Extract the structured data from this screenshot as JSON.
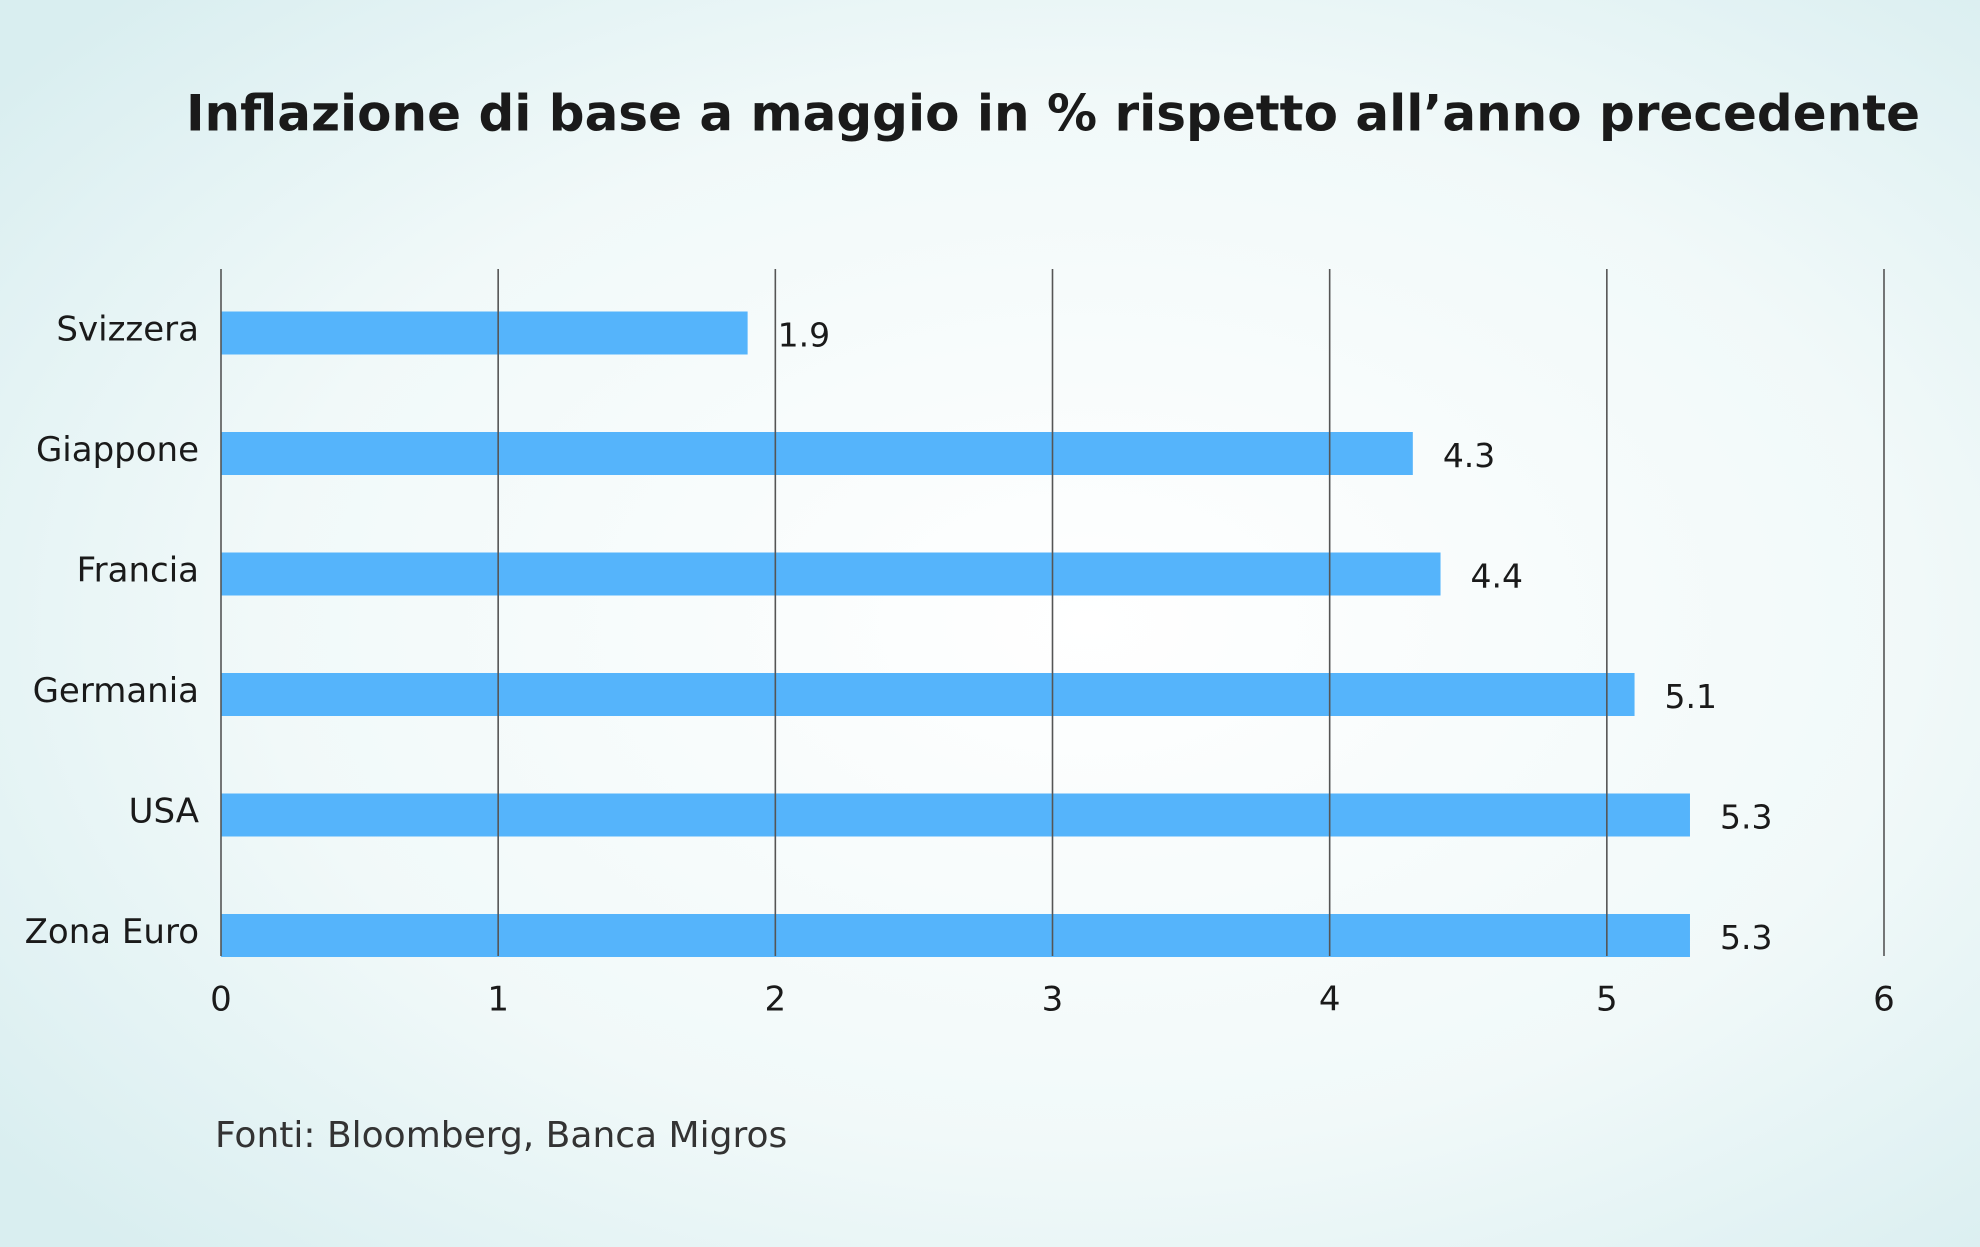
{
  "chart_data": {
    "type": "bar",
    "orientation": "horizontal",
    "title": "Inflazione di base a maggio in % rispetto all’anno precedente",
    "categories": [
      "Svizzera",
      "Giappone",
      "Francia",
      "Germania",
      "USA",
      "Zona Euro"
    ],
    "values": [
      1.9,
      4.3,
      4.4,
      5.1,
      5.3,
      5.3
    ],
    "color": "#55b4fb",
    "xlim": [
      0,
      6
    ],
    "xticks": [
      0,
      1,
      2,
      3,
      4,
      5,
      6
    ],
    "grid": true,
    "source": "Fonti: Bloomberg, Banca Migros"
  }
}
